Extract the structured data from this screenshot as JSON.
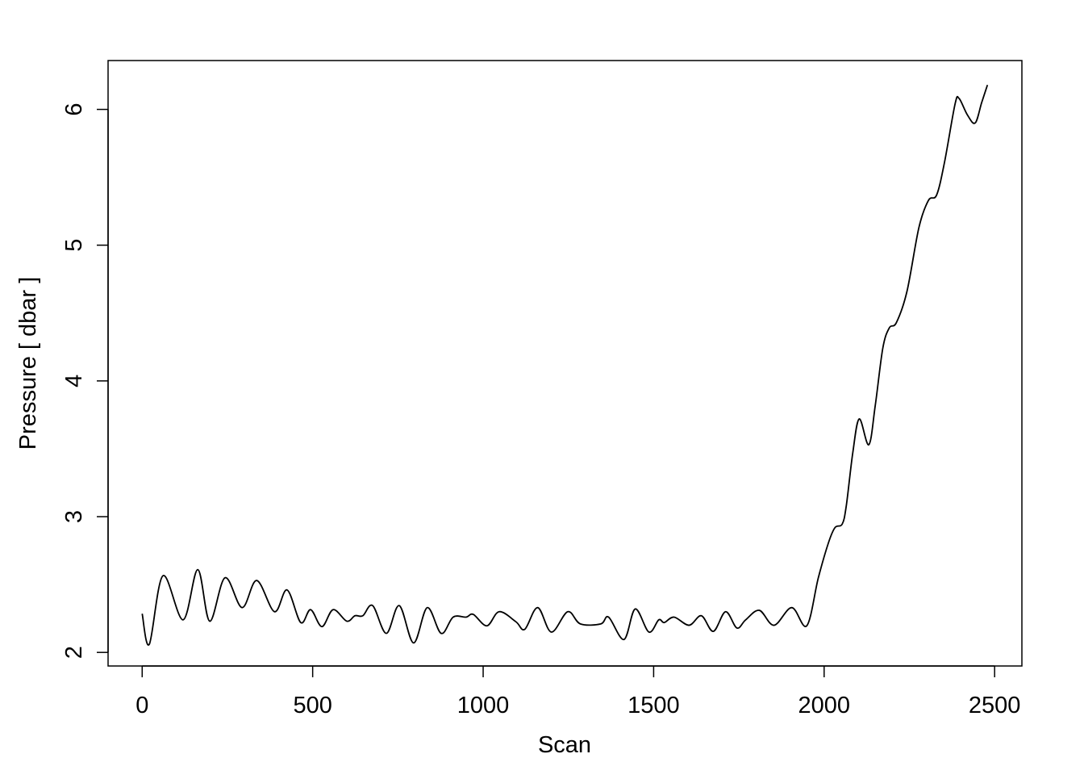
{
  "chart_data": {
    "type": "line",
    "title": "",
    "xlabel": "Scan",
    "ylabel": "Pressure [ dbar ]",
    "xlim": [
      -100,
      2580
    ],
    "ylim": [
      1.9,
      6.36
    ],
    "xticks": [
      0,
      500,
      1000,
      1500,
      2000,
      2500
    ],
    "yticks": [
      2,
      3,
      4,
      5,
      6
    ],
    "xtick_labels": [
      "0",
      "500",
      "1000",
      "1500",
      "2000",
      "2500"
    ],
    "ytick_labels": [
      "2",
      "3",
      "4",
      "5",
      "6"
    ],
    "grid": false,
    "line_color": "#000000",
    "series": [
      {
        "x": [
          0,
          21,
          61,
          120,
          163,
          198,
          243,
          293,
          336,
          388,
          425,
          465,
          494,
          527,
          560,
          600,
          624,
          647,
          676,
          716,
          754,
          796,
          836,
          877,
          912,
          950,
          971,
          1011,
          1047,
          1096,
          1122,
          1160,
          1200,
          1248,
          1285,
          1345,
          1368,
          1413,
          1446,
          1486,
          1515,
          1531,
          1560,
          1604,
          1640,
          1675,
          1711,
          1744,
          1770,
          1810,
          1853,
          1905,
          1949,
          1983,
          2013,
          2032,
          2053,
          2065,
          2084,
          2103,
          2131,
          2150,
          2172,
          2191,
          2212,
          2243,
          2278,
          2306,
          2330,
          2353,
          2384,
          2396,
          2420,
          2443,
          2462,
          2479
        ],
        "y": [
          2.285,
          2.06,
          2.565,
          2.24,
          2.61,
          2.23,
          2.55,
          2.33,
          2.53,
          2.3,
          2.46,
          2.22,
          2.315,
          2.19,
          2.315,
          2.23,
          2.27,
          2.27,
          2.345,
          2.14,
          2.345,
          2.07,
          2.33,
          2.14,
          2.26,
          2.26,
          2.28,
          2.196,
          2.3,
          2.226,
          2.17,
          2.33,
          2.15,
          2.3,
          2.21,
          2.21,
          2.26,
          2.095,
          2.32,
          2.15,
          2.24,
          2.22,
          2.26,
          2.2,
          2.27,
          2.155,
          2.3,
          2.18,
          2.24,
          2.31,
          2.2,
          2.33,
          2.196,
          2.55,
          2.81,
          2.92,
          2.945,
          3.08,
          3.47,
          3.72,
          3.53,
          3.82,
          4.24,
          4.39,
          4.43,
          4.66,
          5.13,
          5.33,
          5.37,
          5.61,
          6.04,
          6.08,
          5.96,
          5.9,
          6.05,
          6.18
        ]
      }
    ]
  }
}
